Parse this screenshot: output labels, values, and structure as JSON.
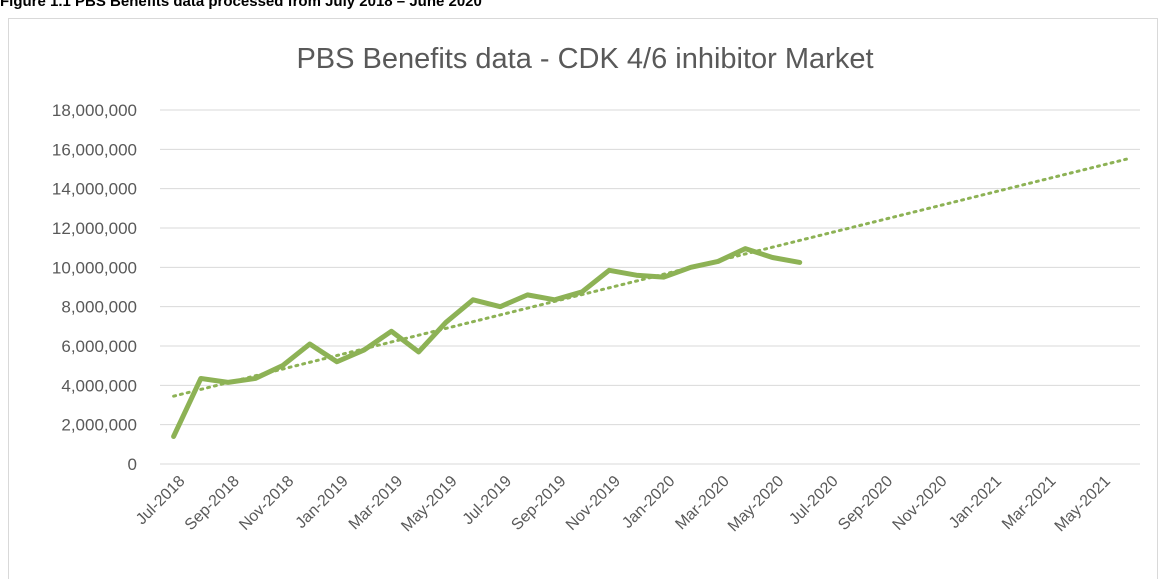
{
  "caption": "Figure 1.1 PBS Benefits data processed from July 2018 – June 2020",
  "chart_data": {
    "type": "line",
    "title": "PBS Benefits data  - CDK 4/6 inhibitor Market",
    "categories": [
      "Jul-2018",
      null,
      "Sep-2018",
      null,
      "Nov-2018",
      null,
      "Jan-2019",
      null,
      "Mar-2019",
      null,
      "May-2019",
      null,
      "Jul-2019",
      null,
      "Sep-2019",
      null,
      "Nov-2019",
      null,
      "Jan-2020",
      null,
      "Mar-2020",
      null,
      "May-2020",
      null,
      "Jul-2020",
      null,
      "Sep-2020",
      null,
      "Nov-2020",
      null,
      "Jan-2021",
      null,
      "Mar-2021",
      null,
      "May-2021",
      null
    ],
    "series": [
      {
        "color": "#8db255",
        "values": [
          1400000,
          4350000,
          4150000,
          4350000,
          5000000,
          6100000,
          5200000,
          5800000,
          6750000,
          5700000,
          7200000,
          8350000,
          8000000,
          8600000,
          8350000,
          8750000,
          9850000,
          9600000,
          9500000,
          10000000,
          10300000,
          10950000,
          10500000,
          10250000,
          null,
          null,
          null,
          null,
          null,
          null,
          null,
          null,
          null,
          null,
          null,
          null
        ]
      }
    ],
    "trendline": {
      "color": "#8db255",
      "style": "dotted",
      "values": [
        3450000,
        15500000
      ]
    },
    "ylim": [
      0,
      18000000
    ],
    "yticks": [
      0,
      {
        "value": 2000000,
        "label": "2,000,000"
      },
      {
        "value": 4000000,
        "label": "4,000,000"
      },
      {
        "value": 6000000,
        "label": "6,000,000"
      },
      {
        "value": 8000000,
        "label": "8,000,000"
      },
      {
        "value": 10000000,
        "label": "10,000,000"
      },
      {
        "value": 12000000,
        "label": "12,000,000"
      },
      {
        "value": 14000000,
        "label": "14,000,000"
      },
      {
        "value": 16000000,
        "label": "16,000,000"
      },
      {
        "value": 18000000,
        "label": "18,000,000"
      }
    ],
    "grid": true
  }
}
